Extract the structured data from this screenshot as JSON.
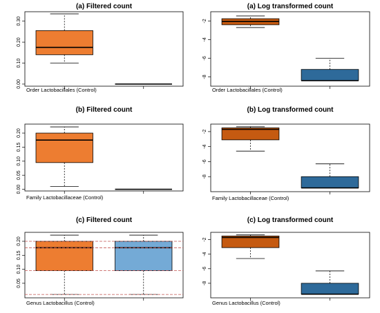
{
  "chart_data": [
    {
      "id": "p1",
      "type": "box",
      "title": "(a) Filtered count",
      "xlabel": "Order Lactobacillales (Control)",
      "ylim": [
        -0.01,
        0.345
      ],
      "yticks": [
        "0.00",
        "0.10",
        "0.20",
        "0.30"
      ],
      "ytick_values": [
        0.0,
        0.1,
        0.2,
        0.3
      ],
      "boxes": [
        {
          "whisker_low": 0.1,
          "q1": 0.14,
          "median": 0.175,
          "q3": 0.255,
          "whisker_high": 0.335,
          "color": "#ED7D31"
        },
        {
          "whisker_low": 0.0,
          "q1": 0.0,
          "median": 0.0,
          "q3": 0.0,
          "whisker_high": 0.0,
          "color": "#ED7D31"
        }
      ],
      "hlines": []
    },
    {
      "id": "p2",
      "type": "box",
      "title": "(a) Log transformed count",
      "xlabel": "Order Lactobacillales (Control)",
      "ylim": [
        -9.0,
        -1.0
      ],
      "yticks": [
        "-2",
        "-4",
        "-6",
        "-8"
      ],
      "ytick_values": [
        -2,
        -4,
        -6,
        -8
      ],
      "boxes": [
        {
          "whisker_low": -2.7,
          "q1": -2.4,
          "median": -2.05,
          "q3": -1.75,
          "whisker_high": -1.45,
          "color": "#C55A11"
        },
        {
          "whisker_low": -8.4,
          "q1": -8.4,
          "median": -8.4,
          "q3": -7.2,
          "whisker_high": -6.0,
          "color": "#2E6A9A"
        }
      ],
      "hlines": []
    },
    {
      "id": "p3",
      "type": "box",
      "title": "(b) Filtered count",
      "xlabel": "Family Lactobacillaceae (Control)",
      "ylim": [
        -0.006,
        0.232
      ],
      "yticks": [
        "0.00",
        "0.05",
        "0.10",
        "0.15",
        "0.20"
      ],
      "ytick_values": [
        0.0,
        0.05,
        0.1,
        0.15,
        0.2
      ],
      "boxes": [
        {
          "whisker_low": 0.01,
          "q1": 0.095,
          "median": 0.175,
          "q3": 0.2,
          "whisker_high": 0.222,
          "color": "#ED7D31"
        },
        {
          "whisker_low": 0.0,
          "q1": 0.0,
          "median": 0.0,
          "q3": 0.001,
          "whisker_high": 0.001,
          "color": "#ED7D31"
        }
      ],
      "hlines": []
    },
    {
      "id": "p4",
      "type": "box",
      "title": "(b) Log transformed count",
      "xlabel": "Family Lactobacillaceae (Control)",
      "ylim": [
        -10.0,
        -1.0
      ],
      "yticks": [
        "-2",
        "-4",
        "-6",
        "-8"
      ],
      "ytick_values": [
        -2,
        -4,
        -6,
        -8
      ],
      "boxes": [
        {
          "whisker_low": -4.6,
          "q1": -3.1,
          "median": -1.7,
          "q3": -1.5,
          "whisker_high": -1.35,
          "color": "#C55A11"
        },
        {
          "whisker_low": -9.5,
          "q1": -9.5,
          "median": -9.5,
          "q3": -8.0,
          "whisker_high": -6.3,
          "color": "#2E6A9A"
        }
      ],
      "hlines": []
    },
    {
      "id": "p5",
      "type": "box",
      "title": "(c) Filtered count",
      "xlabel": "Genus Lactobacillus (Control)",
      "ylim": [
        -0.002,
        0.232
      ],
      "yticks": [
        "0.05",
        "0.10",
        "0.15",
        "0.20"
      ],
      "ytick_values": [
        0.05,
        0.1,
        0.15,
        0.2
      ],
      "boxes": [
        {
          "whisker_low": 0.01,
          "q1": 0.095,
          "median": 0.177,
          "q3": 0.2,
          "whisker_high": 0.222,
          "color": "#ED7D31"
        },
        {
          "whisker_low": 0.01,
          "q1": 0.095,
          "median": 0.177,
          "q3": 0.2,
          "whisker_high": 0.222,
          "color": "#74AAD6"
        }
      ],
      "hlines": [
        0.01,
        0.095,
        0.177,
        0.2
      ]
    },
    {
      "id": "p6",
      "type": "box",
      "title": "(c) Log transformed count",
      "xlabel": "Genus Lactobacillus (Control)",
      "ylim": [
        -10.0,
        -1.0
      ],
      "yticks": [
        "-2",
        "-4",
        "-6",
        "-8"
      ],
      "ytick_values": [
        -2,
        -4,
        -6,
        -8
      ],
      "boxes": [
        {
          "whisker_low": -4.6,
          "q1": -3.1,
          "median": -1.7,
          "q3": -1.5,
          "whisker_high": -1.35,
          "color": "#C55A11"
        },
        {
          "whisker_low": -9.5,
          "q1": -9.5,
          "median": -9.5,
          "q3": -8.0,
          "whisker_high": -6.3,
          "color": "#2E6A9A"
        }
      ],
      "hlines": []
    }
  ]
}
